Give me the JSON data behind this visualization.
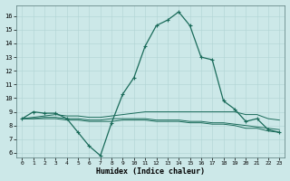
{
  "xlabel": "Humidex (Indice chaleur)",
  "bg_color": "#cce8e8",
  "line_color": "#1a6b5a",
  "xlim": [
    -0.5,
    23.5
  ],
  "ylim": [
    5.7,
    16.8
  ],
  "yticks": [
    6,
    7,
    8,
    9,
    10,
    11,
    12,
    13,
    14,
    15,
    16
  ],
  "xticks": [
    0,
    1,
    2,
    3,
    4,
    5,
    6,
    7,
    8,
    9,
    10,
    11,
    12,
    13,
    14,
    15,
    16,
    17,
    18,
    19,
    20,
    21,
    22,
    23
  ],
  "series": [
    {
      "x": [
        0,
        1,
        2,
        3,
        4,
        5,
        6,
        7,
        8,
        9,
        10,
        11,
        12,
        13,
        14,
        15,
        16,
        17,
        18,
        19,
        20,
        21,
        22,
        23
      ],
      "y": [
        8.5,
        9.0,
        8.9,
        8.9,
        8.5,
        7.5,
        6.5,
        5.8,
        8.2,
        10.3,
        11.5,
        13.8,
        15.3,
        15.7,
        16.3,
        15.3,
        13.0,
        12.8,
        9.8,
        9.2,
        8.3,
        8.5,
        7.7,
        7.5
      ],
      "marker": true
    },
    {
      "x": [
        0,
        1,
        2,
        3,
        4,
        5,
        6,
        7,
        8,
        9,
        10,
        11,
        12,
        13,
        14,
        15,
        16,
        17,
        18,
        19,
        20,
        21,
        22,
        23
      ],
      "y": [
        8.5,
        8.6,
        8.7,
        8.8,
        8.7,
        8.7,
        8.6,
        8.6,
        8.7,
        8.8,
        8.9,
        9.0,
        9.0,
        9.0,
        9.0,
        9.0,
        9.0,
        9.0,
        9.0,
        9.0,
        8.8,
        8.8,
        8.5,
        8.4
      ],
      "marker": false
    },
    {
      "x": [
        0,
        1,
        2,
        3,
        4,
        5,
        6,
        7,
        8,
        9,
        10,
        11,
        12,
        13,
        14,
        15,
        16,
        17,
        18,
        19,
        20,
        21,
        22,
        23
      ],
      "y": [
        8.5,
        8.5,
        8.6,
        8.6,
        8.5,
        8.5,
        8.4,
        8.4,
        8.5,
        8.5,
        8.5,
        8.5,
        8.4,
        8.4,
        8.4,
        8.3,
        8.3,
        8.2,
        8.2,
        8.1,
        8.0,
        7.9,
        7.8,
        7.7
      ],
      "marker": false
    },
    {
      "x": [
        0,
        1,
        2,
        3,
        4,
        5,
        6,
        7,
        8,
        9,
        10,
        11,
        12,
        13,
        14,
        15,
        16,
        17,
        18,
        19,
        20,
        21,
        22,
        23
      ],
      "y": [
        8.5,
        8.5,
        8.5,
        8.5,
        8.4,
        8.4,
        8.3,
        8.3,
        8.3,
        8.4,
        8.4,
        8.4,
        8.3,
        8.3,
        8.3,
        8.2,
        8.2,
        8.1,
        8.1,
        8.0,
        7.8,
        7.8,
        7.6,
        7.5
      ],
      "marker": false
    }
  ]
}
